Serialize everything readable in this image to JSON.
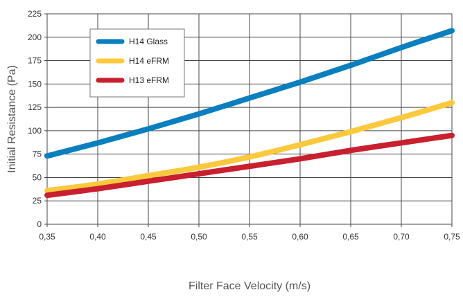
{
  "chart_data": {
    "type": "line",
    "title": "",
    "xlabel": "Filter Face Velocity (m/s)",
    "ylabel": "Initial Resistance (Pa)",
    "xlim": [
      0.35,
      0.75
    ],
    "ylim": [
      0,
      225
    ],
    "x_ticks": [
      "0,35",
      "0,40",
      "0,45",
      "0,50",
      "0,55",
      "0,60",
      "0,65",
      "0,70",
      "0,75"
    ],
    "y_ticks": [
      "0",
      "25",
      "50",
      "75",
      "100",
      "125",
      "150",
      "175",
      "200",
      "225"
    ],
    "grid": true,
    "legend_position": "top-left",
    "x": [
      0.35,
      0.4,
      0.45,
      0.5,
      0.55,
      0.6,
      0.65,
      0.7,
      0.75
    ],
    "series": [
      {
        "name": "H14 Glass",
        "color": "#0a7fbf",
        "values": [
          73,
          87,
          102,
          118,
          135,
          152,
          170,
          189,
          207
        ]
      },
      {
        "name": "H14 eFRM",
        "color": "#fcc93d",
        "values": [
          36,
          43,
          52,
          61,
          72,
          85,
          99,
          114,
          130
        ]
      },
      {
        "name": "H13 eFRM",
        "color": "#c8202f",
        "values": [
          31,
          38,
          46,
          54,
          62,
          70,
          79,
          87,
          95
        ]
      }
    ]
  }
}
